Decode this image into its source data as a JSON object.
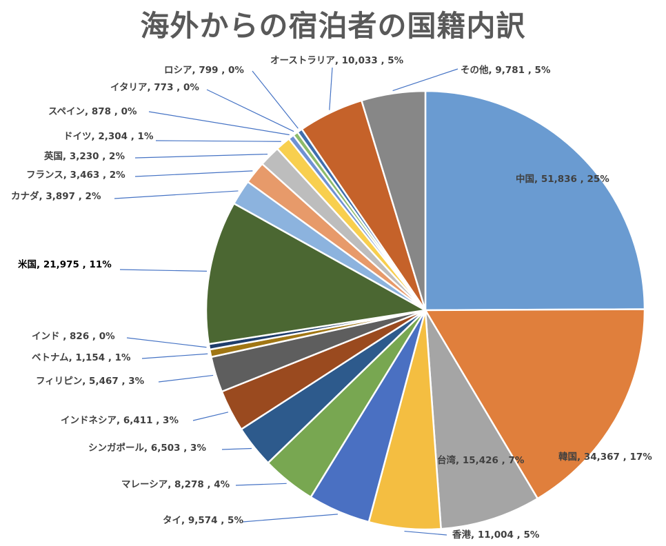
{
  "chart_data": {
    "type": "pie",
    "title": "海外からの宿泊者の国籍内訳",
    "slices": [
      {
        "name": "中国",
        "value": 51836,
        "percent": "25%",
        "label": "中国, 51,836 , 25%",
        "color": "#6A9BD1"
      },
      {
        "name": "韓国",
        "value": 34367,
        "percent": "17%",
        "label": "韓国, 34,367 , 17%",
        "color": "#E07F3C"
      },
      {
        "name": "台湾",
        "value": 15426,
        "percent": "7%",
        "label": "台湾, 15,426 , 7%",
        "color": "#A5A5A5"
      },
      {
        "name": "香港",
        "value": 11004,
        "percent": "5%",
        "label": "香港, 11,004 , 5%",
        "color": "#F4BE41"
      },
      {
        "name": "タイ",
        "value": 9574,
        "percent": "5%",
        "label": "タイ, 9,574 , 5%",
        "color": "#4A70C2"
      },
      {
        "name": "マレーシア",
        "value": 8278,
        "percent": "4%",
        "label": "マレーシア, 8,278 , 4%",
        "color": "#78A751"
      },
      {
        "name": "シンガポール",
        "value": 6503,
        "percent": "3%",
        "label": "シンガポール, 6,503 , 3%",
        "color": "#2D5A8C"
      },
      {
        "name": "インドネシア",
        "value": 6411,
        "percent": "3%",
        "label": "インドネシア, 6,411 , 3%",
        "color": "#9A4A1F"
      },
      {
        "name": "フィリピン",
        "value": 5467,
        "percent": "3%",
        "label": "フィリピン, 5,467 , 3%",
        "color": "#5E5E5E"
      },
      {
        "name": "ベトナム",
        "value": 1154,
        "percent": "1%",
        "label": "ベトナム, 1,154 , 1%",
        "color": "#A07614"
      },
      {
        "name": "インド",
        "value": 826,
        "percent": "0%",
        "label": "インド , 826 , 0%",
        "color": "#1F3D6B"
      },
      {
        "name": "米国",
        "value": 21975,
        "percent": "11%",
        "label": "米国, 21,975 , 11%",
        "color": "#4B6732"
      },
      {
        "name": "カナダ",
        "value": 3897,
        "percent": "2%",
        "label": "カナダ, 3,897 , 2%",
        "color": "#8CB3DE"
      },
      {
        "name": "フランス",
        "value": 3463,
        "percent": "2%",
        "label": "フランス, 3,463 , 2%",
        "color": "#E79A6A"
      },
      {
        "name": "英国",
        "value": 3230,
        "percent": "2%",
        "label": "英国, 3,230 , 2%",
        "color": "#BDBDBD"
      },
      {
        "name": "ドイツ",
        "value": 2304,
        "percent": "1%",
        "label": "ドイツ, 2,304 , 1%",
        "color": "#F8CF4E"
      },
      {
        "name": "スペイン",
        "value": 878,
        "percent": "0%",
        "label": "スペイン, 878 , 0%",
        "color": "#6F91D3"
      },
      {
        "name": "イタリア",
        "value": 773,
        "percent": "0%",
        "label": "イタリア, 773 , 0%",
        "color": "#8DBB6A"
      },
      {
        "name": "ロシア",
        "value": 799,
        "percent": "0%",
        "label": "ロシア, 799 , 0%",
        "color": "#3F6FAE"
      },
      {
        "name": "オーストラリア",
        "value": 10033,
        "percent": "5%",
        "label": "オーストラリア, 10,033 , 5%",
        "color": "#C5622A"
      },
      {
        "name": "その他",
        "value": 9781,
        "percent": "5%",
        "label": "その他, 9,781 , 5%",
        "color": "#878787"
      }
    ],
    "legend": "none",
    "data_labels": "outside-with-leader-lines"
  }
}
